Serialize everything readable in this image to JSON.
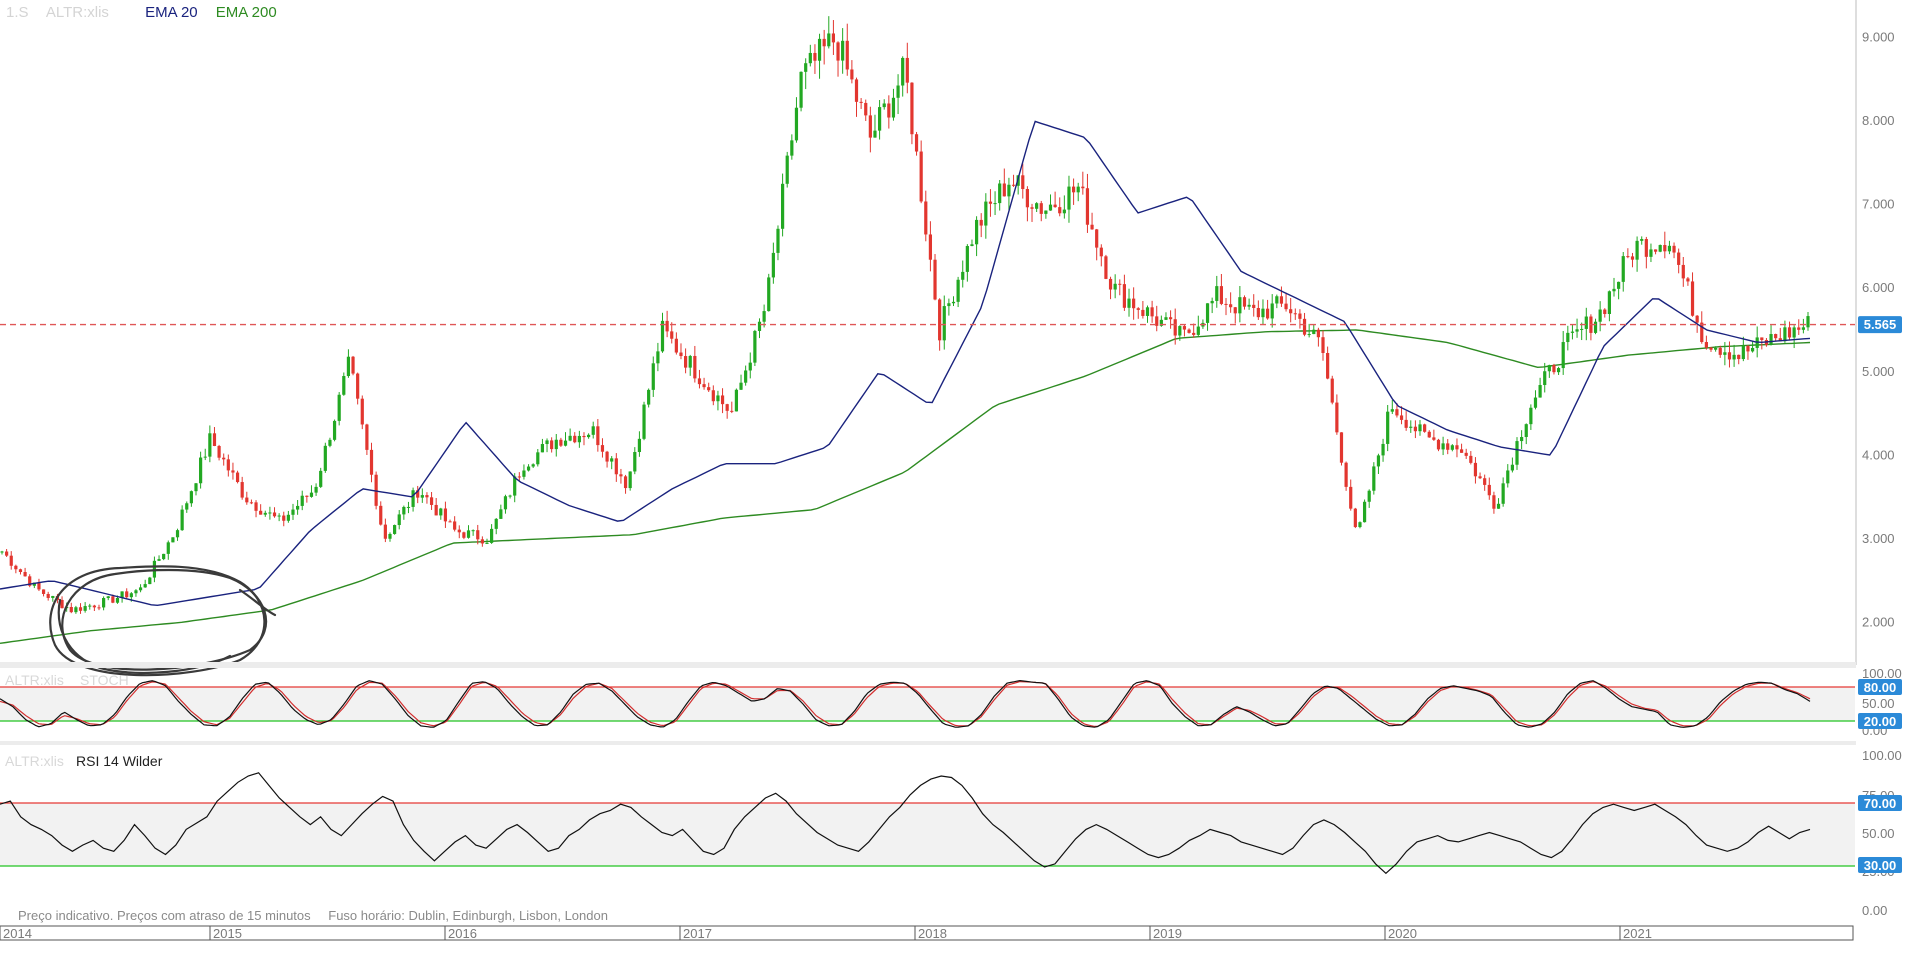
{
  "header": {
    "symbol_prefix": "1.S",
    "symbol": "ALTR:xlis",
    "ema20_label": "EMA 20",
    "ema200_label": "EMA 200"
  },
  "stoch_header": {
    "symbol": "ALTR:xlis",
    "name": "STOCH"
  },
  "rsi_header": {
    "symbol": "ALTR:xlis",
    "name": "RSI 14 Wilder"
  },
  "footer": {
    "note": "Preço indicativo. Preços com atraso de 15 minutos",
    "timezone": "Fuso horário: Dublin, Edinburgh, Lisbon, London"
  },
  "colors": {
    "up": "#22a822",
    "down": "#e2362f",
    "ema20": "#1a237e",
    "ema200": "#2e8b22",
    "ref_line": "#e05656",
    "badge": "#2b8ad8",
    "upper_band": "#e53935",
    "lower_band": "#22c422",
    "stoch_k": "#111111",
    "stoch_d": "#d32f2f",
    "rsi_line": "#111111"
  },
  "chart_data": [
    {
      "type": "candlestick",
      "title": "ALTR:xlis",
      "x": [
        "2014",
        "2014.25",
        "2014.5",
        "2014.75",
        "2015",
        "2015.25",
        "2015.5",
        "2015.75",
        "2016",
        "2016.25",
        "2016.5",
        "2016.75",
        "2017",
        "2017.25",
        "2017.5",
        "2017.75",
        "2018",
        "2018.25",
        "2018.5",
        "2018.75",
        "2019",
        "2019.25",
        "2019.5",
        "2019.75",
        "2020",
        "2020.25",
        "2020.5",
        "2020.75",
        "2021",
        "2021.25",
        "2021.5",
        "2021.75"
      ],
      "close_path": [
        2.85,
        2.4,
        2.15,
        2.25,
        2.4,
        3.1,
        4.2,
        3.5,
        3.2,
        3.6,
        5.1,
        3.0,
        3.6,
        3.1,
        3.0,
        3.9,
        4.2,
        4.3,
        3.65,
        5.5,
        5.0,
        4.5,
        5.8,
        8.5,
        9.0,
        7.8,
        8.6,
        5.5,
        6.7,
        7.3,
        6.95,
        7.2,
        6.0,
        5.7,
        5.4,
        5.9,
        5.7,
        5.8,
        5.3,
        3.0,
        4.6,
        4.2,
        4.1,
        3.4,
        4.6,
        5.3,
        5.7,
        6.5,
        6.6,
        5.4,
        5.2,
        5.4,
        5.565
      ],
      "ema20": [
        2.4,
        2.5,
        2.35,
        2.2,
        2.3,
        2.4,
        3.1,
        3.6,
        3.5,
        4.4,
        3.7,
        3.4,
        3.2,
        3.6,
        3.9,
        3.9,
        4.1,
        5.0,
        4.6,
        5.8,
        8.0,
        7.8,
        6.9,
        7.1,
        6.2,
        5.9,
        5.6,
        4.6,
        4.3,
        4.1,
        4.0,
        5.3,
        5.9,
        5.5,
        5.35,
        5.4
      ],
      "ema200": [
        1.75,
        1.9,
        2.0,
        2.15,
        2.5,
        2.95,
        3.0,
        3.05,
        3.25,
        3.35,
        3.8,
        4.6,
        4.95,
        5.4,
        5.48,
        5.5,
        5.35,
        5.05,
        5.2,
        5.3,
        5.35
      ],
      "price_axis": {
        "ticks": [
          "2.000",
          "3.000",
          "4.000",
          "5.000",
          "6.000",
          "7.000",
          "8.000",
          "9.000"
        ],
        "range": [
          1.55,
          9.45
        ]
      },
      "last_price": "5.565",
      "year_labels": [
        "2014",
        "2015",
        "2016",
        "2017",
        "2018",
        "2019",
        "2020",
        "2021"
      ]
    },
    {
      "type": "line",
      "title": "STOCH",
      "ylim": [
        0,
        100
      ],
      "ticks": [
        "0.00",
        "50.00",
        "100.00"
      ],
      "upper_band": "80.00",
      "lower_band": "20.00",
      "k": [
        60,
        45,
        20,
        6,
        12,
        35,
        20,
        8,
        10,
        30,
        65,
        90,
        95,
        85,
        55,
        30,
        10,
        8,
        25,
        60,
        88,
        92,
        70,
        40,
        20,
        10,
        20,
        50,
        85,
        95,
        88,
        60,
        28,
        8,
        5,
        18,
        55,
        90,
        93,
        80,
        50,
        25,
        8,
        10,
        35,
        70,
        88,
        90,
        75,
        50,
        25,
        10,
        5,
        20,
        55,
        85,
        92,
        85,
        70,
        55,
        60,
        80,
        75,
        50,
        20,
        8,
        10,
        35,
        70,
        88,
        92,
        90,
        70,
        40,
        12,
        5,
        8,
        30,
        65,
        90,
        95,
        92,
        90,
        60,
        25,
        8,
        5,
        20,
        55,
        90,
        95,
        85,
        50,
        25,
        8,
        10,
        30,
        45,
        35,
        20,
        8,
        12,
        40,
        70,
        85,
        80,
        60,
        40,
        20,
        8,
        10,
        30,
        60,
        80,
        85,
        80,
        75,
        65,
        35,
        10,
        5,
        12,
        35,
        70,
        90,
        95,
        80,
        60,
        45,
        40,
        35,
        10,
        5,
        8,
        25,
        55,
        75,
        88,
        92,
        90,
        78,
        70,
        55
      ],
      "d": [
        55,
        48,
        28,
        12,
        10,
        28,
        22,
        12,
        10,
        25,
        58,
        85,
        93,
        88,
        62,
        36,
        16,
        10,
        22,
        52,
        82,
        90,
        76,
        48,
        26,
        14,
        18,
        44,
        78,
        92,
        90,
        66,
        36,
        14,
        8,
        15,
        48,
        84,
        92,
        84,
        58,
        32,
        14,
        10,
        30,
        62,
        84,
        90,
        80,
        56,
        32,
        15,
        8,
        16,
        48,
        80,
        90,
        88,
        74,
        60,
        60,
        76,
        76,
        56,
        28,
        12,
        10,
        30,
        62,
        84,
        90,
        90,
        74,
        46,
        20,
        8,
        8,
        26,
        58,
        86,
        93,
        92,
        90,
        66,
        32,
        12,
        6,
        16,
        48,
        84,
        93,
        88,
        58,
        32,
        12,
        10,
        26,
        42,
        38,
        26,
        12,
        12,
        34,
        64,
        82,
        82,
        66,
        46,
        26,
        12,
        10,
        26,
        54,
        76,
        84,
        82,
        76,
        68,
        42,
        16,
        8,
        10,
        30,
        62,
        86,
        93,
        84,
        66,
        50,
        42,
        38,
        18,
        8,
        8,
        20,
        48,
        70,
        84,
        90,
        90,
        80,
        72,
        60
      ]
    },
    {
      "type": "line",
      "title": "RSI 14 Wilder",
      "ylim": [
        0,
        100
      ],
      "ticks": [
        "0.00",
        "25.00",
        "50.00",
        "75.00",
        "100.00"
      ],
      "upper_band": "70.00",
      "lower_band": "30.00",
      "values": [
        68,
        70,
        60,
        55,
        52,
        48,
        42,
        38,
        42,
        45,
        40,
        38,
        45,
        55,
        48,
        40,
        36,
        42,
        52,
        56,
        60,
        70,
        76,
        82,
        86,
        88,
        80,
        72,
        66,
        60,
        55,
        60,
        52,
        48,
        55,
        62,
        68,
        73,
        70,
        55,
        45,
        38,
        32,
        38,
        44,
        48,
        42,
        40,
        46,
        52,
        55,
        50,
        44,
        38,
        40,
        48,
        52,
        58,
        62,
        64,
        68,
        66,
        60,
        55,
        50,
        48,
        52,
        45,
        38,
        36,
        40,
        52,
        60,
        66,
        72,
        75,
        70,
        62,
        56,
        50,
        46,
        42,
        40,
        38,
        44,
        52,
        60,
        66,
        74,
        80,
        84,
        86,
        85,
        80,
        72,
        62,
        55,
        50,
        44,
        38,
        32,
        28,
        30,
        38,
        46,
        52,
        55,
        52,
        48,
        44,
        40,
        36,
        34,
        36,
        40,
        45,
        48,
        52,
        50,
        48,
        44,
        42,
        40,
        38,
        36,
        40,
        48,
        55,
        58,
        55,
        50,
        44,
        38,
        30,
        24,
        30,
        38,
        44,
        46,
        48,
        45,
        44,
        46,
        48,
        50,
        48,
        46,
        44,
        40,
        36,
        34,
        38,
        46,
        55,
        62,
        66,
        68,
        66,
        64,
        66,
        68,
        64,
        60,
        55,
        48,
        42,
        40,
        38,
        40,
        44,
        50,
        54,
        50,
        46,
        50,
        52
      ]
    }
  ]
}
